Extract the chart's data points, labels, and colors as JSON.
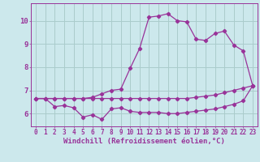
{
  "background_color": "#cce8ec",
  "grid_color": "#aacccc",
  "line_color": "#993399",
  "xlabel": "Windchill (Refroidissement éolien,°C)",
  "xlabel_fontsize": 6.5,
  "xtick_fontsize": 5.5,
  "ytick_fontsize": 6.5,
  "xlim": [
    -0.5,
    23.5
  ],
  "ylim": [
    5.45,
    10.75
  ],
  "yticks": [
    6,
    7,
    8,
    9,
    10
  ],
  "xticks": [
    0,
    1,
    2,
    3,
    4,
    5,
    6,
    7,
    8,
    9,
    10,
    11,
    12,
    13,
    14,
    15,
    16,
    17,
    18,
    19,
    20,
    21,
    22,
    23
  ],
  "line1_x": [
    0,
    1,
    2,
    3,
    4,
    5,
    6,
    7,
    8,
    9,
    10,
    11,
    12,
    13,
    14,
    15,
    16,
    17,
    18,
    19,
    20,
    21,
    22,
    23
  ],
  "line1_y": [
    6.65,
    6.65,
    6.3,
    6.35,
    6.25,
    5.85,
    5.95,
    5.75,
    6.2,
    6.25,
    6.1,
    6.05,
    6.05,
    6.05,
    6.0,
    6.0,
    6.05,
    6.1,
    6.15,
    6.2,
    6.3,
    6.4,
    6.55,
    7.2
  ],
  "line2_x": [
    0,
    1,
    2,
    3,
    4,
    5,
    6,
    7,
    8,
    9,
    10,
    11,
    12,
    13,
    14,
    15,
    16,
    17,
    18,
    19,
    20,
    21,
    22,
    23
  ],
  "line2_y": [
    6.65,
    6.65,
    6.65,
    6.65,
    6.65,
    6.65,
    6.65,
    6.65,
    6.65,
    6.65,
    6.65,
    6.65,
    6.65,
    6.65,
    6.65,
    6.65,
    6.65,
    6.7,
    6.75,
    6.8,
    6.9,
    7.0,
    7.1,
    7.2
  ],
  "line3_x": [
    0,
    1,
    2,
    3,
    4,
    5,
    6,
    7,
    8,
    9,
    10,
    11,
    12,
    13,
    14,
    15,
    16,
    17,
    18,
    19,
    20,
    21,
    22,
    23
  ],
  "line3_y": [
    6.65,
    6.65,
    6.65,
    6.65,
    6.65,
    6.65,
    6.7,
    6.85,
    7.0,
    7.05,
    7.95,
    8.8,
    10.15,
    10.2,
    10.3,
    10.0,
    9.95,
    9.2,
    9.15,
    9.45,
    9.55,
    8.95,
    8.7,
    7.2
  ]
}
